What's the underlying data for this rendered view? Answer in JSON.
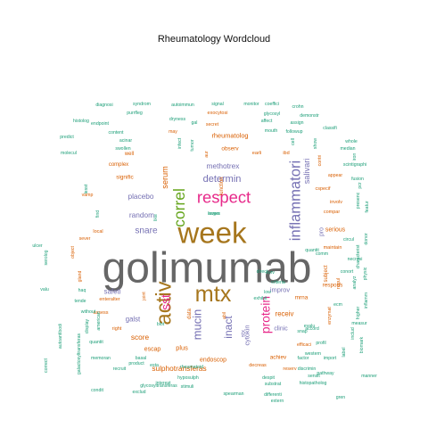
{
  "chart_data": {
    "type": "wordcloud",
    "title": "Rheumatology  Wordcloud",
    "palette": {
      "teal": "#1b9e77",
      "orange": "#d95f02",
      "purple": "#7570b3",
      "pink": "#e7298a",
      "green": "#66a61e",
      "gold": "#a6761d",
      "gray": "#666666"
    },
    "words": [
      {
        "text": "golimumab",
        "weight": 100,
        "color": "gray"
      },
      {
        "text": "week",
        "weight": 72,
        "color": "gold"
      },
      {
        "text": "mtx",
        "weight": 55,
        "color": "gold"
      },
      {
        "text": "activ",
        "weight": 52,
        "color": "gold"
      },
      {
        "text": "respect",
        "weight": 40,
        "color": "pink"
      },
      {
        "text": "correl",
        "weight": 38,
        "color": "green"
      },
      {
        "text": "inflammatori",
        "weight": 36,
        "color": "purple"
      },
      {
        "text": "sst",
        "weight": 30,
        "color": "pink"
      },
      {
        "text": "protein",
        "weight": 30,
        "color": "pink"
      },
      {
        "text": "mucin",
        "weight": 28,
        "color": "purple"
      },
      {
        "text": "inact",
        "weight": 26,
        "color": "purple"
      },
      {
        "text": "determin",
        "weight": 24,
        "color": "purple"
      },
      {
        "text": "snare",
        "weight": 22,
        "color": "purple"
      },
      {
        "text": "serum",
        "weight": 20,
        "color": "orange"
      },
      {
        "text": "salivari",
        "weight": 20,
        "color": "purple"
      },
      {
        "text": "methotrex",
        "weight": 18,
        "color": "purple"
      },
      {
        "text": "random",
        "weight": 18,
        "color": "purple"
      },
      {
        "text": "placebo",
        "weight": 18,
        "color": "purple"
      },
      {
        "text": "sulphotransferas",
        "weight": 18,
        "color": "orange"
      },
      {
        "text": "score",
        "weight": 18,
        "color": "orange"
      },
      {
        "text": "galst",
        "weight": 17,
        "color": "purple"
      },
      {
        "text": "safeti",
        "weight": 17,
        "color": "purple"
      },
      {
        "text": "receiv",
        "weight": 17,
        "color": "orange"
      },
      {
        "text": "improv",
        "weight": 16,
        "color": "purple"
      },
      {
        "text": "rheumatolog",
        "weight": 16,
        "color": "orange"
      },
      {
        "text": "cytokin",
        "weight": 16,
        "color": "purple"
      },
      {
        "text": "plus",
        "weight": 16,
        "color": "orange"
      },
      {
        "text": "endoscop",
        "weight": 15,
        "color": "orange"
      },
      {
        "text": "clinic",
        "weight": 15,
        "color": "purple"
      },
      {
        "text": "serious",
        "weight": 15,
        "color": "orange"
      },
      {
        "text": "escap",
        "weight": 15,
        "color": "orange"
      },
      {
        "text": "pro",
        "weight": 15,
        "color": "purple"
      },
      {
        "text": "respons",
        "weight": 14,
        "color": "orange"
      },
      {
        "text": "achiev",
        "weight": 14,
        "color": "orange"
      },
      {
        "text": "stx",
        "weight": 14,
        "color": "purple"
      },
      {
        "text": "mrna",
        "weight": 14,
        "color": "orange"
      },
      {
        "text": "observ",
        "weight": 14,
        "color": "orange"
      },
      {
        "text": "signific",
        "weight": 14,
        "color": "orange"
      },
      {
        "text": "complex",
        "weight": 13,
        "color": "orange"
      },
      {
        "text": "well",
        "weight": 13,
        "color": "orange"
      },
      {
        "text": "function",
        "weight": 13,
        "color": "orange"
      },
      {
        "text": "data",
        "weight": 13,
        "color": "orange"
      },
      {
        "text": "subject",
        "weight": 13,
        "color": "orange"
      },
      {
        "text": "regul",
        "weight": 12,
        "color": "orange"
      },
      {
        "text": "involv",
        "weight": 12,
        "color": "orange"
      },
      {
        "text": "compar",
        "weight": 12,
        "color": "orange"
      },
      {
        "text": "cspecif",
        "weight": 12,
        "color": "orange"
      },
      {
        "text": "earli",
        "weight": 12,
        "color": "orange"
      },
      {
        "text": "ibd",
        "weight": 12,
        "color": "orange"
      },
      {
        "text": "local",
        "weight": 12,
        "color": "orange"
      },
      {
        "text": "enteralter",
        "weight": 12,
        "color": "orange"
      },
      {
        "text": "assess",
        "weight": 12,
        "color": "orange"
      },
      {
        "text": "reserv",
        "weight": 12,
        "color": "orange"
      },
      {
        "text": "decreas",
        "weight": 12,
        "color": "orange"
      },
      {
        "text": "maintain",
        "weight": 12,
        "color": "orange"
      },
      {
        "text": "exocytosi",
        "weight": 12,
        "color": "orange"
      },
      {
        "text": "right",
        "weight": 12,
        "color": "orange"
      },
      {
        "text": "efficaci",
        "weight": 11,
        "color": "orange"
      },
      {
        "text": "may",
        "weight": 11,
        "color": "orange"
      },
      {
        "text": "enzymat",
        "weight": 11,
        "color": "orange"
      },
      {
        "text": "secret",
        "weight": 11,
        "color": "orange"
      },
      {
        "text": "vamp",
        "weight": 11,
        "color": "orange"
      },
      {
        "text": "sever",
        "weight": 11,
        "color": "orange"
      },
      {
        "text": "contri",
        "weight": 11,
        "color": "orange"
      },
      {
        "text": "object",
        "weight": 11,
        "color": "orange"
      },
      {
        "text": "gland",
        "weight": 11,
        "color": "orange"
      },
      {
        "text": "appear",
        "weight": 10,
        "color": "orange"
      },
      {
        "text": "abil",
        "weight": 10,
        "color": "orange"
      },
      {
        "text": "aur",
        "weight": 10,
        "color": "orange"
      },
      {
        "text": "joint",
        "weight": 10,
        "color": "orange"
      },
      {
        "text": "blot",
        "weight": 9,
        "color": "teal"
      },
      {
        "text": "substrat",
        "weight": 9,
        "color": "teal"
      },
      {
        "text": "hyposulph",
        "weight": 9,
        "color": "teal"
      },
      {
        "text": "differenti",
        "weight": 9,
        "color": "teal"
      },
      {
        "text": "discrimin",
        "weight": 9,
        "color": "teal"
      },
      {
        "text": "spearman",
        "weight": 9,
        "color": "teal"
      },
      {
        "text": "rheumatoid",
        "weight": 9,
        "color": "teal"
      },
      {
        "text": "interest",
        "weight": 9,
        "color": "teal"
      },
      {
        "text": "esta",
        "weight": 9,
        "color": "teal"
      },
      {
        "text": "basal",
        "weight": 9,
        "color": "teal"
      },
      {
        "text": "despit",
        "weight": 9,
        "color": "teal"
      },
      {
        "text": "factor",
        "weight": 9,
        "color": "teal"
      },
      {
        "text": "sensit",
        "weight": 9,
        "color": "teal"
      },
      {
        "text": "profil",
        "weight": 9,
        "color": "teal"
      },
      {
        "text": "accord",
        "weight": 9,
        "color": "teal"
      },
      {
        "text": "western",
        "weight": 9,
        "color": "teal"
      },
      {
        "text": "evalu",
        "weight": 9,
        "color": "teal"
      },
      {
        "text": "snap",
        "weight": 9,
        "color": "teal"
      },
      {
        "text": "ecm",
        "weight": 9,
        "color": "teal"
      },
      {
        "text": "measur",
        "weight": 9,
        "color": "teal"
      },
      {
        "text": "necrosi",
        "weight": 8,
        "color": "teal"
      },
      {
        "text": "circul",
        "weight": 8,
        "color": "teal"
      },
      {
        "text": "serolog",
        "weight": 8,
        "color": "teal"
      },
      {
        "text": "valu",
        "weight": 8,
        "color": "teal"
      },
      {
        "text": "haq",
        "weight": 8,
        "color": "teal"
      },
      {
        "text": "tende",
        "weight": 8,
        "color": "teal"
      },
      {
        "text": "ulcer",
        "weight": 8,
        "color": "teal"
      },
      {
        "text": "find",
        "weight": 8,
        "color": "teal"
      },
      {
        "text": "like",
        "weight": 8,
        "color": "teal"
      },
      {
        "text": "diagnosi",
        "weight": 7,
        "color": "teal"
      },
      {
        "text": "syndrom",
        "weight": 7,
        "color": "teal"
      },
      {
        "text": "autoimmun",
        "weight": 7,
        "color": "teal"
      },
      {
        "text": "signal",
        "weight": 7,
        "color": "teal"
      },
      {
        "text": "monitor",
        "weight": 7,
        "color": "teal"
      },
      {
        "text": "coeffici",
        "weight": 7,
        "color": "teal"
      },
      {
        "text": "crohn",
        "weight": 7,
        "color": "teal"
      },
      {
        "text": "purrfleg",
        "weight": 7,
        "color": "teal"
      },
      {
        "text": "dryness",
        "weight": 7,
        "color": "teal"
      },
      {
        "text": "gal",
        "weight": 7,
        "color": "teal"
      },
      {
        "text": "affect",
        "weight": 7,
        "color": "teal"
      },
      {
        "text": "glycosyl",
        "weight": 7,
        "color": "teal"
      },
      {
        "text": "demonstr",
        "weight": 7,
        "color": "teal"
      },
      {
        "text": "histolog",
        "weight": 7,
        "color": "teal"
      },
      {
        "text": "endpoint",
        "weight": 7,
        "color": "teal"
      },
      {
        "text": "mouth",
        "weight": 7,
        "color": "teal"
      },
      {
        "text": "followup",
        "weight": 7,
        "color": "teal"
      },
      {
        "text": "assign",
        "weight": 7,
        "color": "teal"
      },
      {
        "text": "classifi",
        "weight": 7,
        "color": "teal"
      },
      {
        "text": "predict",
        "weight": 7,
        "color": "teal"
      },
      {
        "text": "content",
        "weight": 7,
        "color": "teal"
      },
      {
        "text": "infect",
        "weight": 7,
        "color": "teal"
      },
      {
        "text": "tumor",
        "weight": 7,
        "color": "teal"
      },
      {
        "text": "cell",
        "weight": 7,
        "color": "teal"
      },
      {
        "text": "show",
        "weight": 7,
        "color": "teal"
      },
      {
        "text": "acinar",
        "weight": 7,
        "color": "teal"
      },
      {
        "text": "swollen",
        "weight": 7,
        "color": "teal"
      },
      {
        "text": "molecul",
        "weight": 7,
        "color": "teal"
      },
      {
        "text": "scintigraphi",
        "weight": 7,
        "color": "teal"
      },
      {
        "text": "whole",
        "weight": 7,
        "color": "teal"
      },
      {
        "text": "median",
        "weight": 7,
        "color": "teal"
      },
      {
        "text": "fusion",
        "weight": 7,
        "color": "teal"
      },
      {
        "text": "presenc",
        "weight": 7,
        "color": "teal"
      },
      {
        "text": "featur",
        "weight": 7,
        "color": "teal"
      },
      {
        "text": "donor",
        "weight": 7,
        "color": "teal"
      },
      {
        "text": "characterist",
        "weight": 7,
        "color": "teal"
      },
      {
        "text": "physic",
        "weight": 7,
        "color": "teal"
      },
      {
        "text": "inflamm",
        "weight": 7,
        "color": "teal"
      },
      {
        "text": "analyz",
        "weight": 7,
        "color": "teal"
      },
      {
        "text": "higher",
        "weight": 7,
        "color": "teal"
      },
      {
        "text": "label",
        "weight": 7,
        "color": "teal"
      },
      {
        "text": "includ",
        "weight": 7,
        "color": "teal"
      },
      {
        "text": "biomark",
        "weight": 7,
        "color": "teal"
      },
      {
        "text": "import",
        "weight": 7,
        "color": "teal"
      },
      {
        "text": "pathway",
        "weight": 7,
        "color": "teal"
      },
      {
        "text": "gren",
        "weight": 7,
        "color": "teal"
      },
      {
        "text": "manner",
        "weight": 7,
        "color": "teal"
      },
      {
        "text": "histopatholog",
        "weight": 7,
        "color": "teal"
      },
      {
        "text": "extern",
        "weight": 7,
        "color": "teal"
      },
      {
        "text": "stimuli",
        "weight": 7,
        "color": "teal"
      },
      {
        "text": "glycosyltransferas",
        "weight": 7,
        "color": "teal"
      },
      {
        "text": "exclud",
        "weight": 7,
        "color": "teal"
      },
      {
        "text": "product",
        "weight": 7,
        "color": "teal"
      },
      {
        "text": "recruit",
        "weight": 7,
        "color": "teal"
      },
      {
        "text": "condit",
        "weight": 7,
        "color": "teal"
      },
      {
        "text": "memoran",
        "weight": 7,
        "color": "teal"
      },
      {
        "text": "quantit",
        "weight": 7,
        "color": "teal"
      },
      {
        "text": "display",
        "weight": 7,
        "color": "teal"
      },
      {
        "text": "without",
        "weight": 7,
        "color": "teal"
      },
      {
        "text": "american",
        "weight": 7,
        "color": "teal"
      },
      {
        "text": "correct",
        "weight": 7,
        "color": "teal"
      },
      {
        "text": "autoantibodi",
        "weight": 7,
        "color": "teal"
      },
      {
        "text": "galactosyltransferas",
        "weight": 7,
        "color": "teal"
      },
      {
        "text": "lesst",
        "weight": 7,
        "color": "teal"
      },
      {
        "text": "exhibit",
        "weight": 7,
        "color": "teal"
      },
      {
        "text": "criteria",
        "weight": 7,
        "color": "teal"
      },
      {
        "text": "low",
        "weight": 7,
        "color": "teal"
      },
      {
        "text": "curv",
        "weight": 7,
        "color": "teal"
      },
      {
        "text": "direct",
        "weight": 7,
        "color": "teal"
      },
      {
        "text": "comm",
        "weight": 7,
        "color": "teal"
      },
      {
        "text": "quantit",
        "weight": 7,
        "color": "teal"
      },
      {
        "text": "conort",
        "weight": 7,
        "color": "teal"
      },
      {
        "text": "pcr",
        "weight": 7,
        "color": "teal"
      },
      {
        "text": "iron",
        "weight": 7,
        "color": "teal"
      },
      {
        "text": "larger",
        "weight": 7,
        "color": "teal"
      },
      {
        "text": "invers",
        "weight": 7,
        "color": "teal"
      }
    ]
  }
}
